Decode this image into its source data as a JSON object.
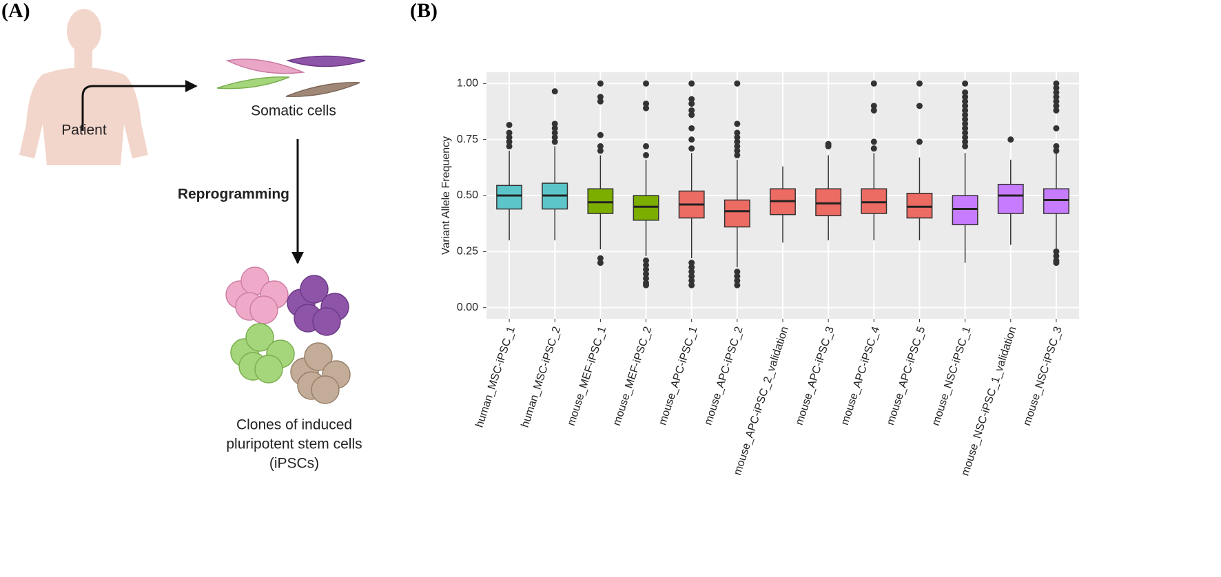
{
  "panel_labels": [
    "(A)",
    "(B)"
  ],
  "diagram": {
    "patient": "Patient",
    "somatic": "Somatic cells",
    "step": "Reprogramming",
    "clones": [
      "Clones of induced",
      "pluripotent stem cells",
      "(iPSCs)"
    ]
  },
  "chart_data": {
    "type": "box",
    "ylabel": "Variant Allele Frequency",
    "categories": [
      "human_MSC-iPSC_1",
      "human_MSC-iPSC_2",
      "mouse_MEF-iPSC_1",
      "mouse_MEF-iPSC_2",
      "mouse_APC-iPSC_1",
      "mouse_APC-iPSC_2",
      "mouse_APC-iPSC_2_validation",
      "mouse_APC-iPSC_3",
      "mouse_APC-iPSC_4",
      "mouse_APC-iPSC_5",
      "mouse_NSC-iPSC_1",
      "mouse_NSC-iPSC_1_validation",
      "mouse_NSC-iPSC_3"
    ],
    "colors": [
      "#5bc5c9",
      "#5bc5c9",
      "#7cae00",
      "#7cae00",
      "#ec6b63",
      "#ec6b63",
      "#ec6b63",
      "#ec6b63",
      "#ec6b63",
      "#ec6b63",
      "#c77cff",
      "#c77cff",
      "#c77cff"
    ],
    "whisker_low": [
      0.3,
      0.3,
      0.26,
      0.23,
      0.22,
      0.18,
      0.29,
      0.3,
      0.3,
      0.3,
      0.2,
      0.28,
      0.26
    ],
    "q1": [
      0.44,
      0.44,
      0.42,
      0.39,
      0.4,
      0.36,
      0.415,
      0.41,
      0.42,
      0.4,
      0.37,
      0.42,
      0.42
    ],
    "median": [
      0.5,
      0.5,
      0.47,
      0.45,
      0.46,
      0.43,
      0.475,
      0.465,
      0.47,
      0.45,
      0.44,
      0.5,
      0.48
    ],
    "q3": [
      0.545,
      0.555,
      0.53,
      0.5,
      0.52,
      0.48,
      0.53,
      0.53,
      0.53,
      0.51,
      0.5,
      0.55,
      0.53
    ],
    "whisker_high": [
      0.7,
      0.72,
      0.68,
      0.66,
      0.69,
      0.66,
      0.63,
      0.68,
      0.69,
      0.67,
      0.69,
      0.66,
      0.69
    ],
    "outliers": [
      [
        0.72,
        0.74,
        0.76,
        0.78,
        0.815
      ],
      [
        0.74,
        0.76,
        0.78,
        0.8,
        0.82,
        0.965
      ],
      [
        0.7,
        0.72,
        0.77,
        0.92,
        0.94,
        1.0,
        0.22,
        0.2
      ],
      [
        0.68,
        0.72,
        0.89,
        0.91,
        1.0,
        0.21,
        0.19,
        0.17,
        0.15,
        0.13,
        0.11,
        0.1
      ],
      [
        0.71,
        0.75,
        0.8,
        0.86,
        0.88,
        0.91,
        0.93,
        1.0,
        0.2,
        0.18,
        0.16,
        0.14,
        0.12,
        0.1
      ],
      [
        0.68,
        0.7,
        0.72,
        0.74,
        0.76,
        0.78,
        0.82,
        1.0,
        0.16,
        0.14,
        0.12,
        0.1
      ],
      [],
      [
        0.72,
        0.73
      ],
      [
        0.71,
        0.74,
        0.88,
        0.9,
        1.0
      ],
      [
        0.74,
        0.9,
        1.0
      ],
      [
        0.72,
        0.74,
        0.76,
        0.78,
        0.8,
        0.82,
        0.84,
        0.86,
        0.88,
        0.9,
        0.92,
        0.94,
        0.96,
        1.0
      ],
      [
        0.75
      ],
      [
        0.7,
        0.72,
        0.8,
        0.88,
        0.9,
        0.92,
        0.94,
        0.96,
        0.98,
        1.0,
        0.25,
        0.23,
        0.21,
        0.2
      ]
    ],
    "ylim": [
      -0.05,
      1.05
    ],
    "yticks": [
      {
        "value": 0,
        "label": "0.00"
      },
      0.25,
      {
        "value": 0.5,
        "label": "0.50"
      },
      0.75,
      {
        "value": 1,
        "label": "1.00"
      }
    ],
    "grid": true
  }
}
